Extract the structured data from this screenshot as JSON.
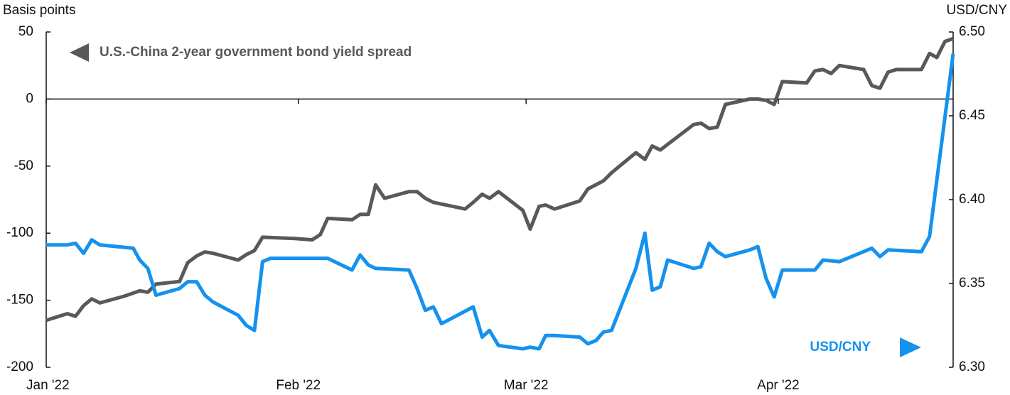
{
  "chart_data": {
    "type": "line",
    "ylabel": "Basis points",
    "y2label": "USD/CNY",
    "annotations": [
      "U.S.-China 2-year government bond yield spread",
      "USD/CNY"
    ],
    "xlim": [
      0,
      111.5
    ],
    "xticks": [
      {
        "value": 0,
        "label": "Jan '22"
      },
      {
        "value": 31,
        "label": "Feb '22"
      },
      {
        "value": 59,
        "label": "Mar '22"
      },
      {
        "value": 90,
        "label": "Apr '22"
      }
    ],
    "ylim": [
      -200,
      50
    ],
    "yticks": [
      50,
      0,
      -50,
      -100,
      -150,
      -200
    ],
    "y2lim": [
      6.3,
      6.5
    ],
    "y2ticks": [
      {
        "value": 6.5,
        "label": "6.50"
      },
      6.45,
      {
        "value": 6.4,
        "label": "6.40"
      },
      6.35,
      {
        "value": 6.3,
        "label": "6.30"
      }
    ],
    "grid": false,
    "series": [
      {
        "name": "U.S.-China 2-year government bond yield spread",
        "color": "#58595b",
        "x": [
          0,
          2.6,
          3.6,
          4.6,
          5.6,
          6.6,
          9.6,
          11.5,
          12.5,
          13.5,
          16.4,
          17.4,
          18.5,
          19.5,
          20.5,
          23.6,
          24.6,
          25.6,
          26.6,
          30.6,
          32.7,
          33.7,
          34.6,
          37.6,
          38.6,
          39.6,
          40.5,
          41.6,
          44.6,
          45.6,
          46.6,
          47.6,
          51.5,
          52.5,
          53.6,
          54.5,
          55.6,
          58.6,
          59.5,
          60.6,
          61.4,
          62.5,
          65.6,
          66.6,
          68.5,
          69.5,
          72.5,
          73.6,
          74.5,
          75.5,
          79.6,
          80.5,
          81.5,
          82.5,
          83.5,
          86.5,
          87.5,
          88.5,
          89.5,
          90.5,
          93.5,
          94.5,
          95.5,
          96.5,
          97.5,
          100.5,
          101.5,
          102.5,
          103.5,
          104.5,
          107.6,
          108.6,
          109.5,
          110.5,
          111.5
        ],
        "values": [
          -165,
          -160,
          -162,
          -154,
          -149,
          -152,
          -147,
          -143,
          -144,
          -138,
          -136,
          -122,
          -117,
          -114,
          -115,
          -120,
          -116,
          -113,
          -103,
          -104,
          -105,
          -101,
          -89,
          -90,
          -86,
          -86,
          -64,
          -74,
          -69,
          -69,
          -74,
          -77,
          -82,
          -77,
          -71,
          -74,
          -69,
          -83,
          -97,
          -80,
          -79,
          -82,
          -76,
          -67,
          -61,
          -55,
          -40,
          -45,
          -35,
          -38,
          -19,
          -18,
          -22,
          -21,
          -4,
          0,
          0,
          -1,
          -4,
          13,
          12,
          21,
          22,
          19,
          25,
          22,
          10,
          8,
          20,
          22,
          22,
          34,
          31,
          43,
          45
        ]
      },
      {
        "name": "USD/CNY",
        "color": "#1592ee",
        "axis": "y2",
        "x": [
          0,
          2.6,
          3.6,
          4.6,
          5.6,
          6.6,
          10.7,
          11.5,
          12.5,
          13.5,
          16.4,
          17.4,
          18.5,
          19.5,
          20.5,
          23.6,
          24.6,
          25.6,
          26.6,
          27.6,
          34.6,
          37.6,
          38.6,
          39.6,
          40.5,
          44.6,
          45.6,
          46.6,
          47.6,
          48.6,
          52.5,
          53.6,
          54.5,
          55.6,
          58.6,
          59.5,
          60.6,
          61.4,
          62.5,
          65.6,
          66.6,
          67.6,
          68.5,
          69.5,
          72.5,
          73.6,
          74.5,
          75.5,
          76.4,
          79.6,
          80.5,
          81.5,
          82.5,
          83.5,
          86.5,
          87.5,
          88.5,
          89.5,
          90.5,
          94.5,
          95.5,
          97.5,
          100.5,
          101.5,
          102.5,
          103.5,
          107.6,
          108.6,
          111.5
        ],
        "values": [
          6.373,
          6.373,
          6.374,
          6.368,
          6.376,
          6.373,
          6.371,
          6.364,
          6.359,
          6.343,
          6.347,
          6.351,
          6.351,
          6.343,
          6.339,
          6.331,
          6.325,
          6.322,
          6.363,
          6.365,
          6.365,
          6.358,
          6.367,
          6.361,
          6.359,
          6.358,
          6.347,
          6.334,
          6.336,
          6.326,
          6.336,
          6.318,
          6.322,
          6.313,
          6.311,
          6.312,
          6.311,
          6.319,
          6.319,
          6.318,
          6.314,
          6.316,
          6.321,
          6.322,
          6.359,
          6.38,
          6.346,
          6.348,
          6.364,
          6.359,
          6.36,
          6.374,
          6.369,
          6.366,
          6.37,
          6.372,
          6.353,
          6.342,
          6.358,
          6.358,
          6.364,
          6.363,
          6.369,
          6.371,
          6.366,
          6.37,
          6.369,
          6.378,
          6.487
        ]
      }
    ]
  }
}
